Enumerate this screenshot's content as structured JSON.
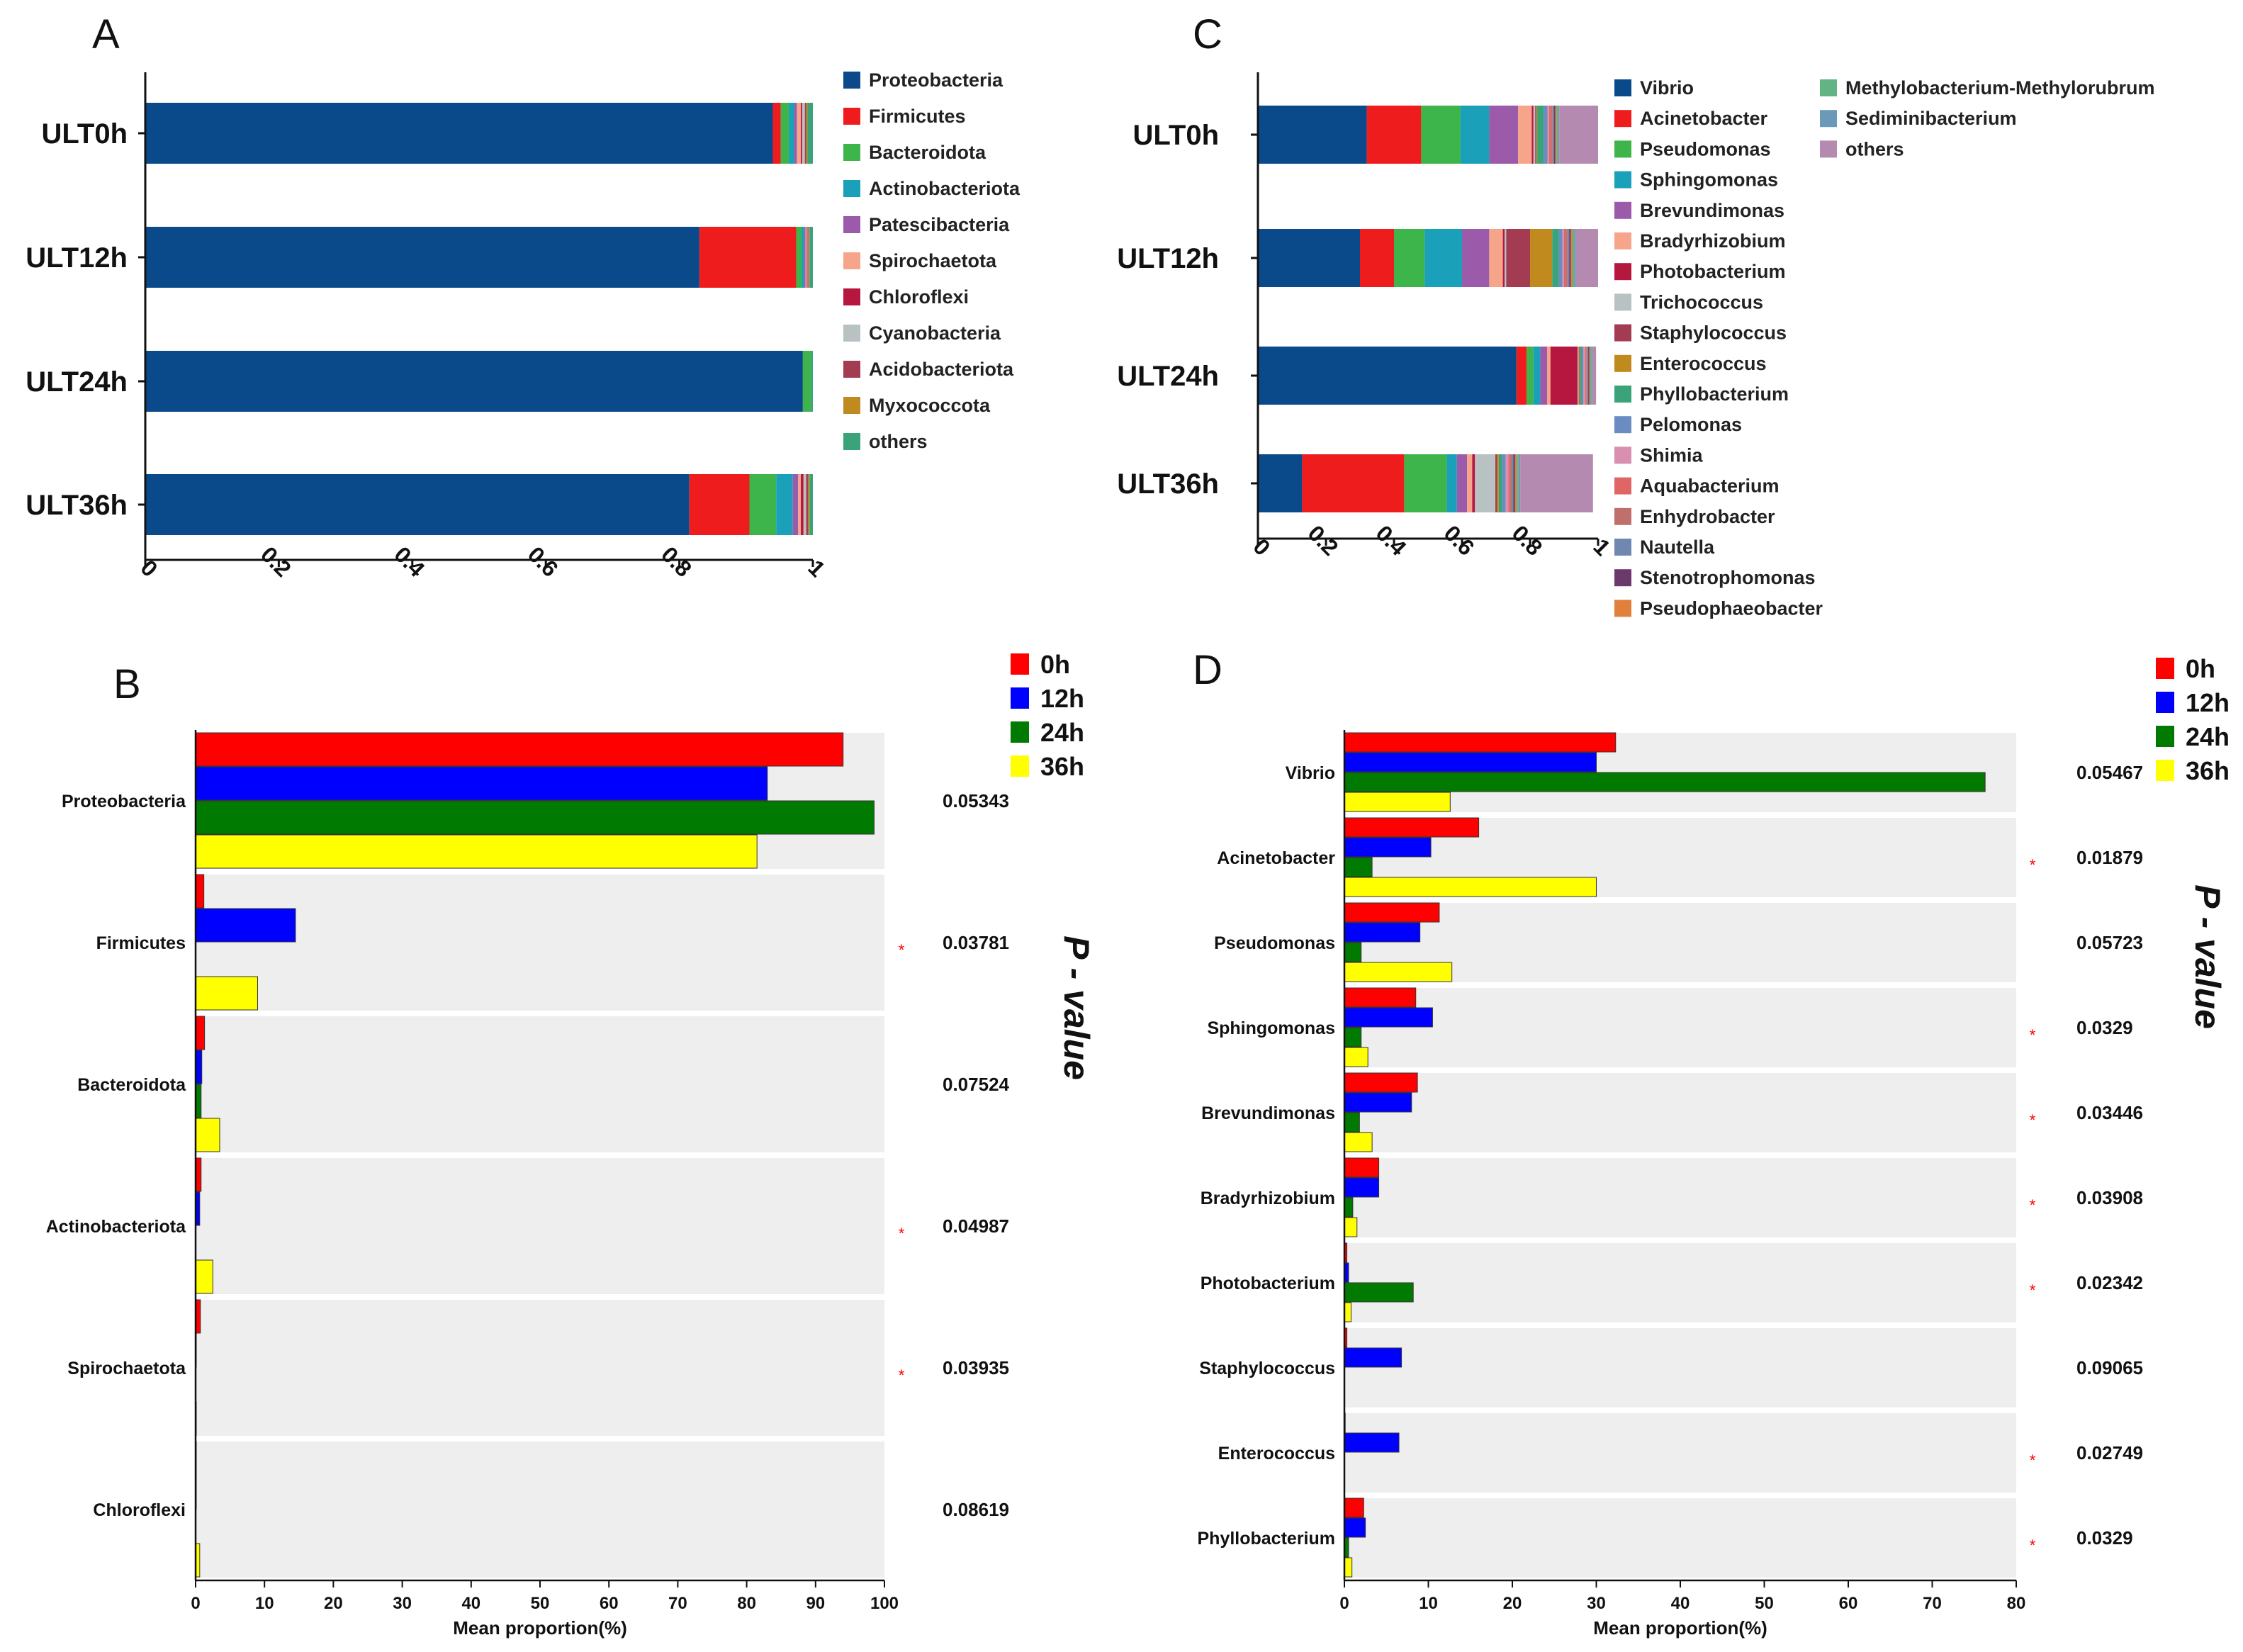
{
  "chart_data": [
    {
      "panel": "A",
      "type": "bar",
      "orientation": "horizontal",
      "stacked": true,
      "title": "",
      "xlabel": "",
      "ylabel": "",
      "xlim": [
        0,
        1
      ],
      "x_ticks": [
        "0",
        "0.2",
        "0.4",
        "0.6",
        "0.8",
        "1"
      ],
      "categories": [
        "ULT0h",
        "ULT12h",
        "ULT24h",
        "ULT36h"
      ],
      "legend_position": "right",
      "series": [
        {
          "name": "Proteobacteria",
          "color": "#0a4a8b",
          "values": [
            0.94,
            0.83,
            0.985,
            0.815
          ]
        },
        {
          "name": "Firmicutes",
          "color": "#ee1c1c",
          "values": [
            0.012,
            0.145,
            0.0,
            0.09
          ]
        },
        {
          "name": "Bacteroidota",
          "color": "#3db54a",
          "values": [
            0.012,
            0.008,
            0.012,
            0.04
          ]
        },
        {
          "name": "Actinobacteriota",
          "color": "#1aa0b8",
          "values": [
            0.008,
            0.004,
            0.0,
            0.025
          ]
        },
        {
          "name": "Patescibacteria",
          "color": "#9b5aaa",
          "values": [
            0.004,
            0.002,
            0.0,
            0.008
          ]
        },
        {
          "name": "Spirochaetota",
          "color": "#f7a58a",
          "values": [
            0.006,
            0.002,
            0.0,
            0.004
          ]
        },
        {
          "name": "Chloroflexi",
          "color": "#b5173e",
          "values": [
            0.002,
            0.001,
            0.0,
            0.004
          ]
        },
        {
          "name": "Cyanobacteria",
          "color": "#b9c2c2",
          "values": [
            0.004,
            0.001,
            0.0,
            0.004
          ]
        },
        {
          "name": "Acidobacteriota",
          "color": "#a33b52",
          "values": [
            0.002,
            0.001,
            0.0,
            0.003
          ]
        },
        {
          "name": "Myxococcota",
          "color": "#c08a1e",
          "values": [
            0.002,
            0.001,
            0.0,
            0.002
          ]
        },
        {
          "name": "others",
          "color": "#3aa37a",
          "values": [
            0.008,
            0.005,
            0.003,
            0.005
          ]
        }
      ]
    },
    {
      "panel": "C",
      "type": "bar",
      "orientation": "horizontal",
      "stacked": true,
      "title": "",
      "xlabel": "",
      "ylabel": "",
      "xlim": [
        0,
        1
      ],
      "x_ticks": [
        "0",
        "0.2",
        "0.4",
        "0.6",
        "0.8",
        "1"
      ],
      "categories": [
        "ULT0h",
        "ULT12h",
        "ULT24h",
        "ULT36h"
      ],
      "legend_position": "right",
      "series": [
        {
          "name": "Vibrio",
          "color": "#0a4a8b",
          "values": [
            0.32,
            0.3,
            0.76,
            0.13
          ]
        },
        {
          "name": "Acinetobacter",
          "color": "#ee1c1c",
          "values": [
            0.16,
            0.1,
            0.03,
            0.3
          ]
        },
        {
          "name": "Pseudomonas",
          "color": "#3db54a",
          "values": [
            0.115,
            0.09,
            0.02,
            0.125
          ]
        },
        {
          "name": "Sphingomonas",
          "color": "#1aa0b8",
          "values": [
            0.085,
            0.11,
            0.02,
            0.03
          ]
        },
        {
          "name": "Brevundimonas",
          "color": "#9b5aaa",
          "values": [
            0.085,
            0.08,
            0.02,
            0.03
          ]
        },
        {
          "name": "Bradyrhizobium",
          "color": "#f7a58a",
          "values": [
            0.04,
            0.04,
            0.01,
            0.015
          ]
        },
        {
          "name": "Photobacterium",
          "color": "#b5173e",
          "values": [
            0.005,
            0.005,
            0.08,
            0.008
          ]
        },
        {
          "name": "Trichococcus",
          "color": "#b9c2c2",
          "values": [
            0.005,
            0.005,
            0.003,
            0.06
          ]
        },
        {
          "name": "Staphylococcus",
          "color": "#a33b52",
          "values": [
            0.003,
            0.07,
            0.002,
            0.005
          ]
        },
        {
          "name": "Enterococcus",
          "color": "#c08a1e",
          "values": [
            0.003,
            0.065,
            0.002,
            0.005
          ]
        },
        {
          "name": "Phyllobacterium",
          "color": "#3aa37a",
          "values": [
            0.02,
            0.02,
            0.005,
            0.01
          ]
        },
        {
          "name": "Pelomonas",
          "color": "#6a8cc2",
          "values": [
            0.01,
            0.01,
            0.005,
            0.01
          ]
        },
        {
          "name": "Shimia",
          "color": "#d98fb0",
          "values": [
            0.005,
            0.005,
            0.005,
            0.008
          ]
        },
        {
          "name": "Aquabacterium",
          "color": "#e06666",
          "values": [
            0.005,
            0.005,
            0.003,
            0.005
          ]
        },
        {
          "name": "Enhydrobacter",
          "color": "#c0706b",
          "values": [
            0.005,
            0.005,
            0.003,
            0.005
          ]
        },
        {
          "name": "Nautella",
          "color": "#7088b0",
          "values": [
            0.004,
            0.005,
            0.003,
            0.005
          ]
        },
        {
          "name": "Stenotrophomonas",
          "color": "#6b3a6b",
          "values": [
            0.004,
            0.005,
            0.003,
            0.005
          ]
        },
        {
          "name": "Pseudophaeobacter",
          "color": "#e0803a",
          "values": [
            0.004,
            0.005,
            0.003,
            0.005
          ]
        },
        {
          "name": "Methylobacterium-Methylorubrum",
          "color": "#62b485",
          "values": [
            0.004,
            0.005,
            0.003,
            0.005
          ]
        },
        {
          "name": "Sediminibacterium",
          "color": "#6a9ab8",
          "values": [
            0.004,
            0.005,
            0.003,
            0.005
          ]
        },
        {
          "name": "others",
          "color": "#b58ab0",
          "values": [
            0.114,
            0.065,
            0.011,
            0.214
          ]
        }
      ]
    },
    {
      "panel": "B",
      "type": "bar",
      "orientation": "horizontal",
      "grouped": true,
      "title": "",
      "xlabel": "Mean proportion(%)",
      "ylabel": "",
      "right_axis_title": "P - value",
      "xlim": [
        0,
        100
      ],
      "x_ticks": [
        "0",
        "10",
        "20",
        "30",
        "40",
        "50",
        "60",
        "70",
        "80",
        "90",
        "100"
      ],
      "categories": [
        "Proteobacteria",
        "Firmicutes",
        "Bacteroidota",
        "Actinobacteriota",
        "Spirochaetota",
        "Chloroflexi"
      ],
      "p_values": [
        "0.05343",
        "0.03781",
        "0.07524",
        "0.04987",
        "0.03935",
        "0.08619"
      ],
      "significant": [
        false,
        true,
        false,
        true,
        true,
        false
      ],
      "significance_mark": "*",
      "legend_position": "top-right",
      "series": [
        {
          "name": "0h",
          "color": "#ff0000",
          "values": [
            94,
            1.2,
            1.3,
            0.8,
            0.7,
            0.1
          ]
        },
        {
          "name": "12h",
          "color": "#0000ff",
          "values": [
            83,
            14.5,
            0.9,
            0.6,
            0.1,
            0.1
          ]
        },
        {
          "name": "24h",
          "color": "#007a00",
          "values": [
            98.5,
            0,
            0.8,
            0,
            0,
            0
          ]
        },
        {
          "name": "36h",
          "color": "#ffff00",
          "values": [
            81.5,
            9,
            3.5,
            2.5,
            0.1,
            0.6
          ]
        }
      ]
    },
    {
      "panel": "D",
      "type": "bar",
      "orientation": "horizontal",
      "grouped": true,
      "title": "",
      "xlabel": "Mean proportion(%)",
      "ylabel": "",
      "right_axis_title": "P - value",
      "xlim": [
        0,
        80
      ],
      "x_ticks": [
        "0",
        "10",
        "20",
        "30",
        "40",
        "50",
        "60",
        "70",
        "80"
      ],
      "categories": [
        "Vibrio",
        "Acinetobacter",
        "Pseudomonas",
        "Sphingomonas",
        "Brevundimonas",
        "Bradyrhizobium",
        "Photobacterium",
        "Staphylococcus",
        "Enterococcus",
        "Phyllobacterium"
      ],
      "p_values": [
        "0.05467",
        "0.01879",
        "0.05723",
        "0.0329",
        "0.03446",
        "0.03908",
        "0.02342",
        "0.09065",
        "0.02749",
        "0.0329"
      ],
      "significant": [
        false,
        true,
        false,
        true,
        true,
        true,
        true,
        false,
        true,
        true
      ],
      "significance_mark": "*",
      "legend_position": "top-right",
      "series": [
        {
          "name": "0h",
          "color": "#ff0000",
          "values": [
            32.3,
            16,
            11.3,
            8.5,
            8.7,
            4.1,
            0.3,
            0.3,
            0.1,
            2.3
          ]
        },
        {
          "name": "12h",
          "color": "#0000ff",
          "values": [
            30,
            10.3,
            9,
            10.5,
            8,
            4.1,
            0.5,
            6.8,
            6.5,
            2.5
          ]
        },
        {
          "name": "24h",
          "color": "#007a00",
          "values": [
            76.3,
            3.3,
            2,
            2,
            1.8,
            1,
            8.2,
            0,
            0,
            0.5
          ]
        },
        {
          "name": "36h",
          "color": "#ffff00",
          "values": [
            12.6,
            30,
            12.8,
            2.8,
            3.3,
            1.5,
            0.8,
            0,
            0,
            0.9
          ]
        }
      ]
    }
  ]
}
